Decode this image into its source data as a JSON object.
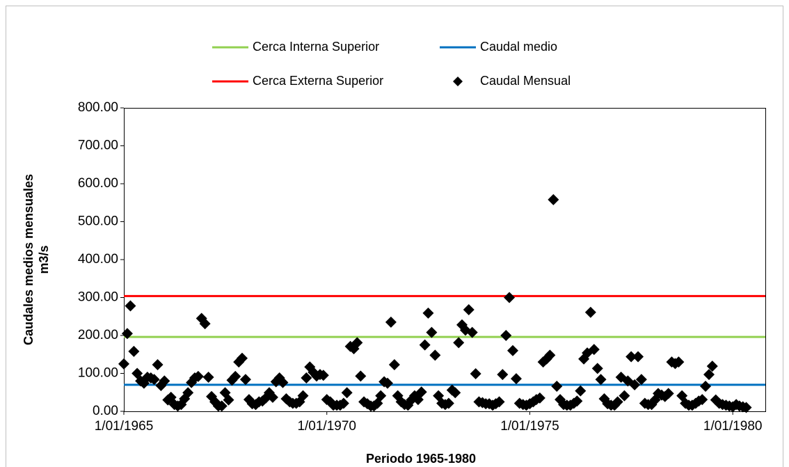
{
  "chart_data": {
    "type": "scatter",
    "y_label": [
      "Caudales medios mensuales",
      "m3/s"
    ],
    "x_label": "Periodo 1965-1980",
    "xlim": [
      "1/01/1965",
      "20/10/1980"
    ],
    "xticks": [
      "1/01/1965",
      "1/01/1970",
      "1/01/1975",
      "1/01/1980"
    ],
    "ylim": [
      0,
      800
    ],
    "yticks": [
      {
        "value": 0,
        "label": "0.00"
      },
      {
        "value": 100,
        "label": "100.00"
      },
      {
        "value": 200,
        "label": "200.00"
      },
      {
        "value": 300,
        "label": "300.00"
      },
      {
        "value": 400,
        "label": "400.00"
      },
      {
        "value": 500,
        "label": "500.00"
      },
      {
        "value": 600,
        "label": "600.00"
      },
      {
        "value": 700,
        "label": "700.00"
      },
      {
        "value": 800,
        "label": "800.00"
      }
    ],
    "grid": false,
    "series": [
      {
        "name": "Cerca Interna Superior",
        "color": "#92d050",
        "type": "hline",
        "value": 196
      },
      {
        "name": "Caudal medio",
        "color": "#0070c0",
        "type": "hline",
        "value": 70
      },
      {
        "name": "Cerca Externa Superior",
        "color": "#ff0000",
        "type": "hline",
        "value": 304
      },
      {
        "name": "Caudal Mensual",
        "color": "#000000",
        "type": "scatter",
        "x": [
          "1/01/1965",
          "1/02/1965",
          "1/03/1965",
          "1/04/1965",
          "1/05/1965",
          "1/06/1965",
          "1/07/1965",
          "1/08/1965",
          "1/09/1965",
          "1/10/1965",
          "1/11/1965",
          "1/12/1965",
          "1/01/1966",
          "1/02/1966",
          "1/03/1966",
          "1/04/1966",
          "1/05/1966",
          "1/06/1966",
          "1/07/1966",
          "1/08/1966",
          "1/09/1966",
          "1/10/1966",
          "1/11/1966",
          "1/12/1966",
          "1/01/1967",
          "1/02/1967",
          "1/03/1967",
          "1/04/1967",
          "1/05/1967",
          "1/06/1967",
          "1/07/1967",
          "1/08/1967",
          "1/09/1967",
          "1/10/1967",
          "1/11/1967",
          "1/12/1967",
          "1/01/1968",
          "1/02/1968",
          "1/03/1968",
          "1/04/1968",
          "1/05/1968",
          "1/06/1968",
          "1/07/1968",
          "1/08/1968",
          "1/09/1968",
          "1/10/1968",
          "1/11/1968",
          "1/12/1968",
          "1/01/1969",
          "1/02/1969",
          "1/03/1969",
          "1/04/1969",
          "1/05/1969",
          "1/06/1969",
          "1/07/1969",
          "1/08/1969",
          "1/09/1969",
          "1/10/1969",
          "1/11/1969",
          "1/12/1969",
          "1/01/1970",
          "1/02/1970",
          "1/03/1970",
          "1/04/1970",
          "1/05/1970",
          "1/06/1970",
          "1/07/1970",
          "1/08/1970",
          "1/09/1970",
          "1/10/1970",
          "1/11/1970",
          "1/12/1970",
          "1/01/1971",
          "1/02/1971",
          "1/03/1971",
          "1/04/1971",
          "1/05/1971",
          "1/06/1971",
          "1/07/1971",
          "1/08/1971",
          "1/09/1971",
          "1/10/1971",
          "1/11/1971",
          "1/12/1971",
          "1/01/1972",
          "1/02/1972",
          "1/03/1972",
          "1/04/1972",
          "1/05/1972",
          "1/06/1972",
          "1/07/1972",
          "1/08/1972",
          "1/09/1972",
          "1/10/1972",
          "1/11/1972",
          "1/12/1972",
          "1/01/1973",
          "1/02/1973",
          "1/03/1973",
          "1/04/1973",
          "1/05/1973",
          "1/06/1973",
          "1/07/1973",
          "1/08/1973",
          "1/09/1973",
          "1/10/1973",
          "1/11/1973",
          "1/12/1973",
          "1/01/1974",
          "1/02/1974",
          "1/03/1974",
          "1/04/1974",
          "1/05/1974",
          "1/06/1974",
          "1/07/1974",
          "1/08/1974",
          "1/09/1974",
          "1/10/1974",
          "1/11/1974",
          "1/12/1974",
          "1/01/1975",
          "1/02/1975",
          "1/03/1975",
          "1/04/1975",
          "1/05/1975",
          "1/06/1975",
          "1/07/1975",
          "1/08/1975",
          "1/09/1975",
          "1/10/1975",
          "1/11/1975",
          "1/12/1975",
          "1/01/1976",
          "1/02/1976",
          "1/03/1976",
          "1/04/1976",
          "1/05/1976",
          "1/06/1976",
          "1/07/1976",
          "1/08/1976",
          "1/09/1976",
          "1/10/1976",
          "1/11/1976",
          "1/12/1976",
          "1/01/1977",
          "1/02/1977",
          "1/03/1977",
          "1/04/1977",
          "1/05/1977",
          "1/06/1977",
          "1/07/1977",
          "1/08/1977",
          "1/09/1977",
          "1/10/1977",
          "1/11/1977",
          "1/12/1977",
          "1/01/1978",
          "1/02/1978",
          "1/03/1978",
          "1/04/1978",
          "1/05/1978",
          "1/06/1978",
          "1/07/1978",
          "1/08/1978",
          "1/09/1978",
          "1/10/1978",
          "1/11/1978",
          "1/12/1978",
          "1/01/1979",
          "1/02/1979",
          "1/03/1979",
          "1/04/1979",
          "1/05/1979",
          "1/06/1979",
          "1/07/1979",
          "1/08/1979",
          "1/09/1979",
          "1/10/1979",
          "1/11/1979",
          "1/12/1979",
          "1/01/1980",
          "1/02/1980",
          "1/03/1980",
          "1/04/1980",
          "1/05/1980"
        ],
        "values": [
          125,
          205,
          278,
          158,
          100,
          80,
          74,
          90,
          88,
          84,
          123,
          68,
          80,
          30,
          37,
          18,
          14,
          18,
          33,
          49,
          76,
          88,
          92,
          245,
          231,
          90,
          39,
          25,
          14,
          14,
          49,
          30,
          82,
          92,
          130,
          140,
          84,
          31,
          20,
          18,
          25,
          27,
          35,
          49,
          37,
          78,
          88,
          76,
          33,
          25,
          21,
          21,
          25,
          41,
          88,
          117,
          103,
          93,
          97,
          95,
          31,
          25,
          16,
          16,
          16,
          21,
          49,
          171,
          165,
          181,
          93,
          25,
          20,
          14,
          14,
          21,
          41,
          78,
          74,
          235,
          123,
          41,
          25,
          18,
          16,
          30,
          41,
          31,
          51,
          175,
          259,
          208,
          148,
          41,
          21,
          18,
          21,
          56,
          49,
          181,
          228,
          214,
          268,
          208,
          99,
          25,
          23,
          20,
          20,
          16,
          20,
          25,
          97,
          200,
          300,
          160,
          86,
          21,
          18,
          16,
          20,
          25,
          31,
          35,
          130,
          138,
          148,
          558,
          66,
          31,
          18,
          16,
          16,
          21,
          27,
          54,
          138,
          154,
          261,
          163,
          113,
          84,
          33,
          20,
          16,
          16,
          25,
          90,
          41,
          80,
          144,
          70,
          144,
          84,
          21,
          18,
          18,
          30,
          47,
          43,
          39,
          47,
          130,
          126,
          130,
          41,
          21,
          16,
          16,
          21,
          27,
          31,
          66,
          97,
          119,
          30,
          21,
          18,
          16,
          14,
          12,
          18,
          14,
          12,
          10
        ]
      }
    ],
    "legend": "top"
  }
}
